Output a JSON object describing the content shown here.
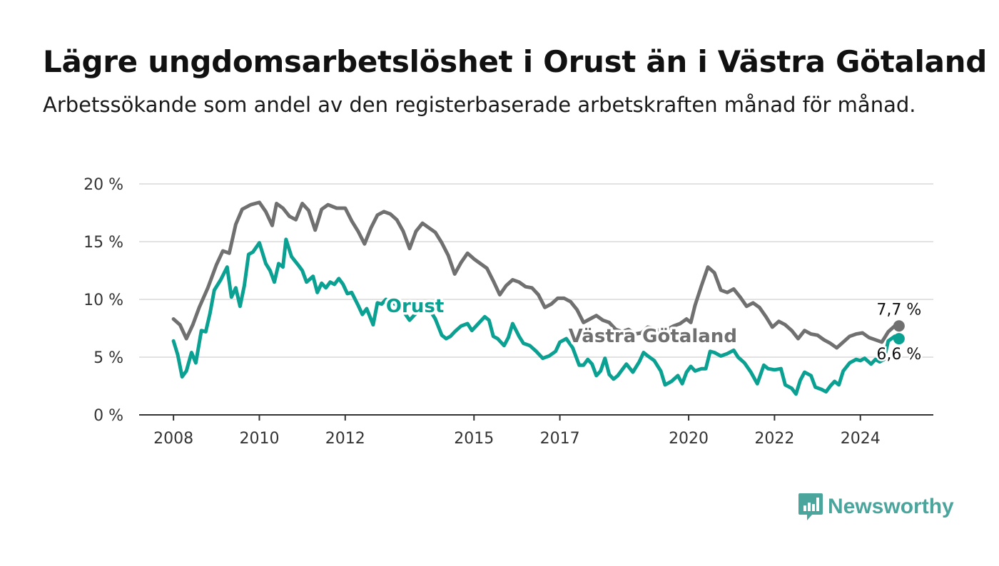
{
  "title": "Lägre ungdomsarbetslöshet i Orust än i Västra Götaland",
  "subtitle": "Arbetssökande som andel av den registerbaserade arbetskraften månad för månad.",
  "brand": {
    "name": "Newsworthy",
    "icon": "bar-chart-speech-bubble-icon",
    "color": "#4aa59c"
  },
  "chart_data": {
    "type": "line",
    "y_tick_labels": [
      "0 %",
      "5 %",
      "10 %",
      "15 %",
      "20 %"
    ],
    "y_ticks": [
      0,
      5,
      10,
      15,
      20
    ],
    "ylim": [
      0,
      20
    ],
    "x_tick_labels": [
      "2008",
      "2010",
      "2012",
      "2015",
      "2017",
      "2020",
      "2022",
      "2024"
    ],
    "x_ticks": [
      2008,
      2010,
      2012,
      2015,
      2017,
      2020,
      2022,
      2024
    ],
    "xlim": [
      2007.2,
      2025.7
    ],
    "grid": true,
    "series": [
      {
        "name": "Västra Götaland",
        "color": "#707070",
        "end_label": "7,7 %",
        "points": [
          [
            2008.0,
            8.3
          ],
          [
            2008.15,
            7.8
          ],
          [
            2008.3,
            6.6
          ],
          [
            2008.45,
            7.8
          ],
          [
            2008.6,
            9.3
          ],
          [
            2008.8,
            11.0
          ],
          [
            2009.0,
            13.0
          ],
          [
            2009.15,
            14.2
          ],
          [
            2009.3,
            14.0
          ],
          [
            2009.45,
            16.5
          ],
          [
            2009.6,
            17.8
          ],
          [
            2009.8,
            18.2
          ],
          [
            2010.0,
            18.4
          ],
          [
            2010.15,
            17.6
          ],
          [
            2010.3,
            16.4
          ],
          [
            2010.4,
            18.3
          ],
          [
            2010.55,
            17.9
          ],
          [
            2010.7,
            17.2
          ],
          [
            2010.85,
            16.9
          ],
          [
            2011.0,
            18.3
          ],
          [
            2011.15,
            17.7
          ],
          [
            2011.3,
            16.0
          ],
          [
            2011.45,
            17.8
          ],
          [
            2011.6,
            18.2
          ],
          [
            2011.8,
            17.9
          ],
          [
            2012.0,
            17.9
          ],
          [
            2012.15,
            16.8
          ],
          [
            2012.3,
            15.9
          ],
          [
            2012.45,
            14.8
          ],
          [
            2012.6,
            16.2
          ],
          [
            2012.75,
            17.3
          ],
          [
            2012.9,
            17.6
          ],
          [
            2013.05,
            17.4
          ],
          [
            2013.2,
            16.9
          ],
          [
            2013.35,
            15.9
          ],
          [
            2013.5,
            14.4
          ],
          [
            2013.65,
            15.9
          ],
          [
            2013.8,
            16.6
          ],
          [
            2013.95,
            16.2
          ],
          [
            2014.1,
            15.8
          ],
          [
            2014.25,
            14.9
          ],
          [
            2014.4,
            13.8
          ],
          [
            2014.55,
            12.2
          ],
          [
            2014.7,
            13.2
          ],
          [
            2014.85,
            14.0
          ],
          [
            2015.0,
            13.5
          ],
          [
            2015.15,
            13.1
          ],
          [
            2015.3,
            12.7
          ],
          [
            2015.45,
            11.6
          ],
          [
            2015.6,
            10.4
          ],
          [
            2015.75,
            11.2
          ],
          [
            2015.9,
            11.7
          ],
          [
            2016.05,
            11.5
          ],
          [
            2016.2,
            11.1
          ],
          [
            2016.35,
            11.0
          ],
          [
            2016.5,
            10.4
          ],
          [
            2016.65,
            9.3
          ],
          [
            2016.8,
            9.6
          ],
          [
            2016.95,
            10.1
          ],
          [
            2017.1,
            10.1
          ],
          [
            2017.25,
            9.8
          ],
          [
            2017.4,
            9.1
          ],
          [
            2017.55,
            8.0
          ],
          [
            2017.7,
            8.3
          ],
          [
            2017.85,
            8.6
          ],
          [
            2018.0,
            8.2
          ],
          [
            2018.15,
            8.0
          ],
          [
            2018.3,
            7.4
          ],
          [
            2018.45,
            7.2
          ],
          [
            2018.6,
            7.4
          ],
          [
            2018.75,
            7.0
          ],
          [
            2018.9,
            7.1
          ],
          [
            2019.05,
            7.6
          ],
          [
            2019.2,
            7.5
          ],
          [
            2019.35,
            7.2
          ],
          [
            2019.5,
            7.4
          ],
          [
            2019.65,
            7.7
          ],
          [
            2019.8,
            7.9
          ],
          [
            2019.95,
            8.3
          ],
          [
            2020.05,
            8.0
          ],
          [
            2020.15,
            9.5
          ],
          [
            2020.3,
            11.2
          ],
          [
            2020.45,
            12.8
          ],
          [
            2020.6,
            12.3
          ],
          [
            2020.75,
            10.8
          ],
          [
            2020.9,
            10.6
          ],
          [
            2021.05,
            10.9
          ],
          [
            2021.2,
            10.2
          ],
          [
            2021.35,
            9.4
          ],
          [
            2021.5,
            9.7
          ],
          [
            2021.65,
            9.3
          ],
          [
            2021.8,
            8.5
          ],
          [
            2021.95,
            7.6
          ],
          [
            2022.1,
            8.1
          ],
          [
            2022.25,
            7.8
          ],
          [
            2022.4,
            7.3
          ],
          [
            2022.55,
            6.6
          ],
          [
            2022.7,
            7.3
          ],
          [
            2022.85,
            7.0
          ],
          [
            2023.0,
            6.9
          ],
          [
            2023.15,
            6.5
          ],
          [
            2023.3,
            6.2
          ],
          [
            2023.45,
            5.8
          ],
          [
            2023.6,
            6.3
          ],
          [
            2023.75,
            6.8
          ],
          [
            2023.9,
            7.0
          ],
          [
            2024.05,
            7.1
          ],
          [
            2024.2,
            6.7
          ],
          [
            2024.35,
            6.5
          ],
          [
            2024.5,
            6.3
          ],
          [
            2024.65,
            7.2
          ],
          [
            2024.8,
            7.7
          ],
          [
            2024.9,
            7.7
          ]
        ]
      },
      {
        "name": "Orust",
        "color": "#0aa193",
        "end_label": "6,6 %",
        "points": [
          [
            2008.0,
            6.4
          ],
          [
            2008.1,
            5.2
          ],
          [
            2008.2,
            3.3
          ],
          [
            2008.3,
            3.8
          ],
          [
            2008.42,
            5.4
          ],
          [
            2008.52,
            4.5
          ],
          [
            2008.65,
            7.3
          ],
          [
            2008.75,
            7.2
          ],
          [
            2008.85,
            8.8
          ],
          [
            2008.95,
            10.8
          ],
          [
            2009.1,
            11.7
          ],
          [
            2009.25,
            12.8
          ],
          [
            2009.35,
            10.2
          ],
          [
            2009.45,
            11.0
          ],
          [
            2009.55,
            9.4
          ],
          [
            2009.65,
            11.2
          ],
          [
            2009.75,
            13.9
          ],
          [
            2009.85,
            14.1
          ],
          [
            2010.0,
            14.9
          ],
          [
            2010.15,
            13.1
          ],
          [
            2010.25,
            12.5
          ],
          [
            2010.35,
            11.5
          ],
          [
            2010.45,
            13.1
          ],
          [
            2010.55,
            12.8
          ],
          [
            2010.62,
            15.2
          ],
          [
            2010.75,
            13.7
          ],
          [
            2010.9,
            13.0
          ],
          [
            2011.0,
            12.5
          ],
          [
            2011.1,
            11.5
          ],
          [
            2011.25,
            12.0
          ],
          [
            2011.35,
            10.6
          ],
          [
            2011.45,
            11.4
          ],
          [
            2011.55,
            11.0
          ],
          [
            2011.65,
            11.5
          ],
          [
            2011.75,
            11.3
          ],
          [
            2011.85,
            11.8
          ],
          [
            2011.95,
            11.3
          ],
          [
            2012.05,
            10.5
          ],
          [
            2012.15,
            10.6
          ],
          [
            2012.3,
            9.5
          ],
          [
            2012.4,
            8.7
          ],
          [
            2012.5,
            9.2
          ],
          [
            2012.65,
            7.8
          ],
          [
            2012.75,
            9.7
          ],
          [
            2012.85,
            9.6
          ],
          [
            2012.95,
            10.0
          ],
          [
            2013.05,
            9.8
          ],
          [
            2013.2,
            9.5
          ],
          [
            2013.35,
            9.0
          ],
          [
            2013.5,
            8.2
          ],
          [
            2013.65,
            8.8
          ],
          [
            2013.8,
            9.5
          ],
          [
            2013.95,
            9.2
          ],
          [
            2014.1,
            8.3
          ],
          [
            2014.25,
            6.9
          ],
          [
            2014.35,
            6.6
          ],
          [
            2014.45,
            6.8
          ],
          [
            2014.55,
            7.2
          ],
          [
            2014.7,
            7.7
          ],
          [
            2014.85,
            7.9
          ],
          [
            2014.95,
            7.3
          ],
          [
            2015.1,
            7.9
          ],
          [
            2015.25,
            8.5
          ],
          [
            2015.35,
            8.2
          ],
          [
            2015.45,
            6.8
          ],
          [
            2015.55,
            6.6
          ],
          [
            2015.7,
            6.0
          ],
          [
            2015.8,
            6.7
          ],
          [
            2015.9,
            7.9
          ],
          [
            2016.05,
            6.8
          ],
          [
            2016.15,
            6.2
          ],
          [
            2016.3,
            6.0
          ],
          [
            2016.45,
            5.5
          ],
          [
            2016.6,
            4.9
          ],
          [
            2016.75,
            5.1
          ],
          [
            2016.9,
            5.5
          ],
          [
            2017.0,
            6.3
          ],
          [
            2017.15,
            6.6
          ],
          [
            2017.3,
            5.8
          ],
          [
            2017.45,
            4.3
          ],
          [
            2017.55,
            4.3
          ],
          [
            2017.65,
            4.8
          ],
          [
            2017.75,
            4.4
          ],
          [
            2017.85,
            3.4
          ],
          [
            2017.95,
            3.8
          ],
          [
            2018.05,
            4.9
          ],
          [
            2018.15,
            3.5
          ],
          [
            2018.25,
            3.1
          ],
          [
            2018.35,
            3.4
          ],
          [
            2018.45,
            3.9
          ],
          [
            2018.55,
            4.4
          ],
          [
            2018.7,
            3.7
          ],
          [
            2018.85,
            4.6
          ],
          [
            2018.95,
            5.4
          ],
          [
            2019.05,
            5.1
          ],
          [
            2019.2,
            4.7
          ],
          [
            2019.35,
            3.8
          ],
          [
            2019.45,
            2.6
          ],
          [
            2019.6,
            2.9
          ],
          [
            2019.75,
            3.4
          ],
          [
            2019.85,
            2.7
          ],
          [
            2019.95,
            3.7
          ],
          [
            2020.05,
            4.2
          ],
          [
            2020.15,
            3.8
          ],
          [
            2020.3,
            4.0
          ],
          [
            2020.4,
            4.0
          ],
          [
            2020.5,
            5.5
          ],
          [
            2020.6,
            5.4
          ],
          [
            2020.75,
            5.1
          ],
          [
            2020.9,
            5.3
          ],
          [
            2021.05,
            5.6
          ],
          [
            2021.15,
            5.0
          ],
          [
            2021.3,
            4.5
          ],
          [
            2021.45,
            3.7
          ],
          [
            2021.6,
            2.7
          ],
          [
            2021.75,
            4.3
          ],
          [
            2021.85,
            4.0
          ],
          [
            2022.0,
            3.9
          ],
          [
            2022.15,
            4.0
          ],
          [
            2022.25,
            2.6
          ],
          [
            2022.4,
            2.3
          ],
          [
            2022.5,
            1.8
          ],
          [
            2022.6,
            3.0
          ],
          [
            2022.7,
            3.7
          ],
          [
            2022.85,
            3.4
          ],
          [
            2022.95,
            2.4
          ],
          [
            2023.1,
            2.2
          ],
          [
            2023.2,
            2.0
          ],
          [
            2023.3,
            2.5
          ],
          [
            2023.4,
            2.9
          ],
          [
            2023.5,
            2.6
          ],
          [
            2023.6,
            3.8
          ],
          [
            2023.75,
            4.5
          ],
          [
            2023.9,
            4.8
          ],
          [
            2024.0,
            4.7
          ],
          [
            2024.1,
            4.9
          ],
          [
            2024.25,
            4.4
          ],
          [
            2024.35,
            4.8
          ],
          [
            2024.45,
            4.6
          ],
          [
            2024.55,
            4.8
          ],
          [
            2024.65,
            6.4
          ],
          [
            2024.8,
            6.8
          ],
          [
            2024.9,
            6.6
          ]
        ]
      }
    ]
  }
}
